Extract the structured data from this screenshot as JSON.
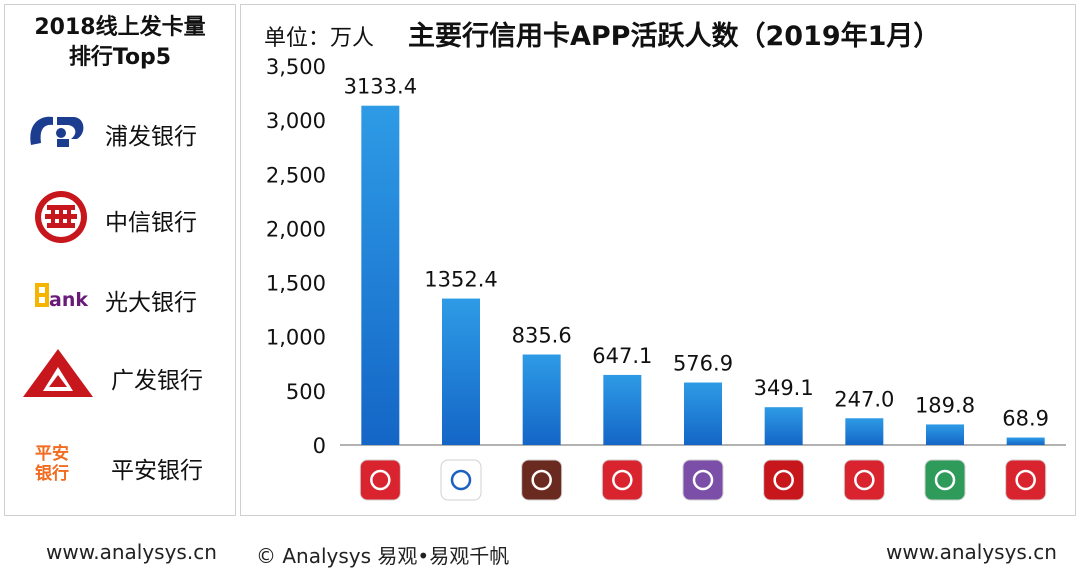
{
  "left_panel": {
    "title_line1": "2018线上发卡量",
    "title_line2": "排行Top5",
    "banks": [
      {
        "name": "浦发银行",
        "logo": "spdb-logo",
        "color": "#1c3d8f"
      },
      {
        "name": "中信银行",
        "logo": "citic-logo",
        "color": "#c8161d"
      },
      {
        "name": "光大银行",
        "logo": "ceb-logo",
        "color": "#6a1b7a"
      },
      {
        "name": "广发银行",
        "logo": "cgb-logo",
        "color": "#c8161d"
      },
      {
        "name": "平安银行",
        "logo": "pingan-logo",
        "color": "#f26c1f"
      }
    ],
    "ceb_logo_text": "ank",
    "pingan_logo_text_line1": "平安",
    "pingan_logo_text_line2": "银行"
  },
  "chart_header": {
    "unit": "单位：万人",
    "title": "主要行信用卡APP活跃人数（2019年1月）"
  },
  "chart_data": {
    "type": "bar",
    "title": "主要行信用卡APP活跃人数（2019年1月）",
    "unit": "单位：万人",
    "values": [
      3133.4,
      1352.4,
      835.6,
      647.1,
      576.9,
      349.1,
      247.0,
      189.8,
      68.9
    ],
    "value_labels": [
      "3133.4",
      "1352.4",
      "835.6",
      "647.1",
      "576.9",
      "349.1",
      "247.0",
      "189.8",
      "68.9"
    ],
    "category_icons": [
      "app-icon-1",
      "app-icon-2",
      "app-icon-3",
      "app-icon-4",
      "app-icon-5",
      "app-icon-6",
      "app-icon-7",
      "app-icon-8",
      "app-icon-9"
    ],
    "icon_colors": [
      "#d9232e",
      "#ffffff",
      "#6b2a1f",
      "#d9232e",
      "#7b4fa8",
      "#c8161d",
      "#d9232e",
      "#2e9b5a",
      "#d9232e"
    ],
    "ylim": [
      0,
      3500
    ],
    "yticks": [
      0,
      500,
      1000,
      1500,
      2000,
      2500,
      3000,
      3500
    ],
    "ytick_labels": [
      "0",
      "500",
      "1,000",
      "1,500",
      "2,000",
      "2,500",
      "3,000",
      "3,500"
    ],
    "bar_color_top": "#2e9be6",
    "bar_color_bottom": "#1466c6",
    "grid": false,
    "legend": "none"
  },
  "footer": {
    "left_url": "www.analysys.cn",
    "copyright": "© Analysys 易观•易观千帆",
    "right_url": "www.analysys.cn"
  }
}
